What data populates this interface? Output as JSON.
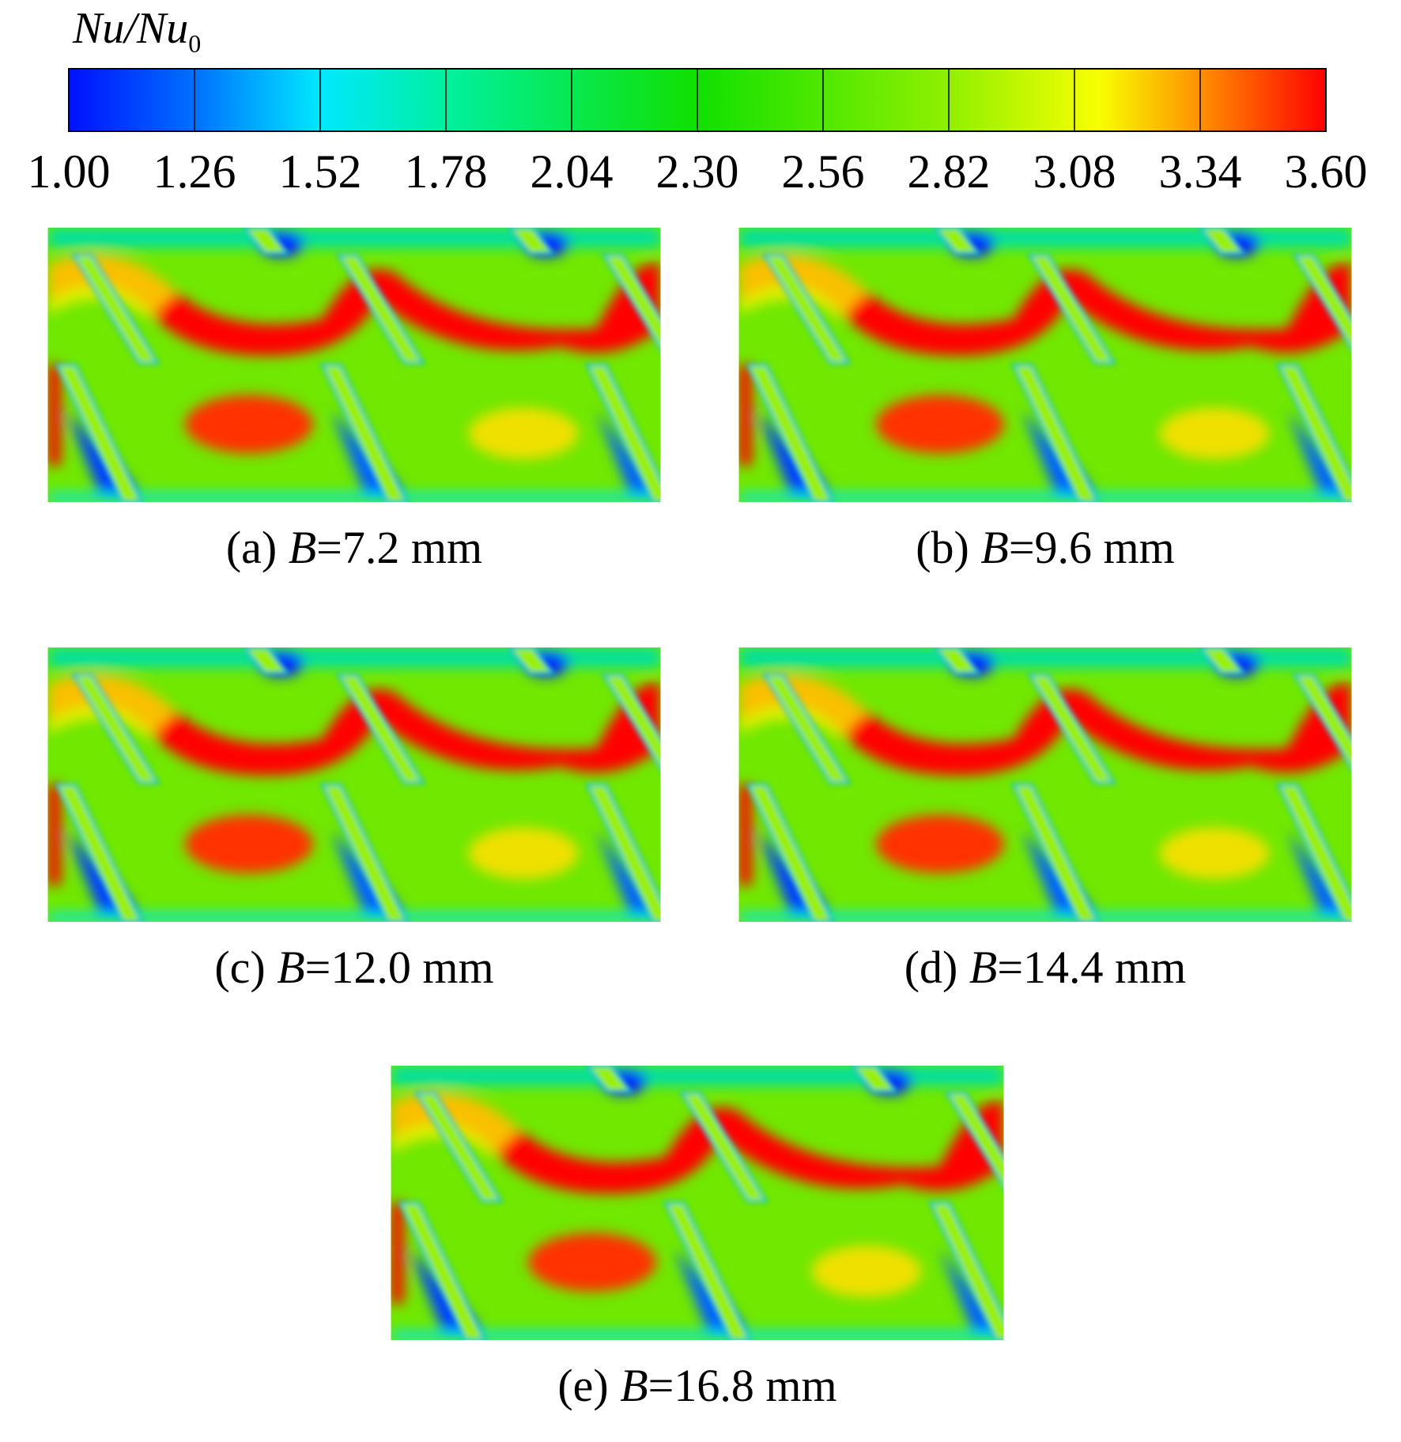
{
  "colorbar": {
    "title": {
      "main": "Nu/Nu",
      "subscript": "0"
    },
    "ticks": [
      {
        "value": 1.0,
        "label": "1.00"
      },
      {
        "value": 1.26,
        "label": "1.26"
      },
      {
        "value": 1.52,
        "label": "1.52"
      },
      {
        "value": 1.78,
        "label": "1.78"
      },
      {
        "value": 2.04,
        "label": "2.04"
      },
      {
        "value": 2.3,
        "label": "2.30"
      },
      {
        "value": 2.56,
        "label": "2.56"
      },
      {
        "value": 2.82,
        "label": "2.82"
      },
      {
        "value": 3.08,
        "label": "3.08"
      },
      {
        "value": 3.34,
        "label": "3.34"
      },
      {
        "value": 3.6,
        "label": "3.60"
      }
    ]
  },
  "panels": [
    {
      "label": "(a)",
      "variable": "B",
      "value": "=7.2 mm"
    },
    {
      "label": "(b)",
      "variable": "B",
      "value": "=9.6 mm"
    },
    {
      "label": "(c)",
      "variable": "B",
      "value": "=12.0 mm"
    },
    {
      "label": "(d)",
      "variable": "B",
      "value": "=14.4 mm"
    },
    {
      "label": "(e)",
      "variable": "B",
      "value": "=16.8 mm"
    }
  ]
}
